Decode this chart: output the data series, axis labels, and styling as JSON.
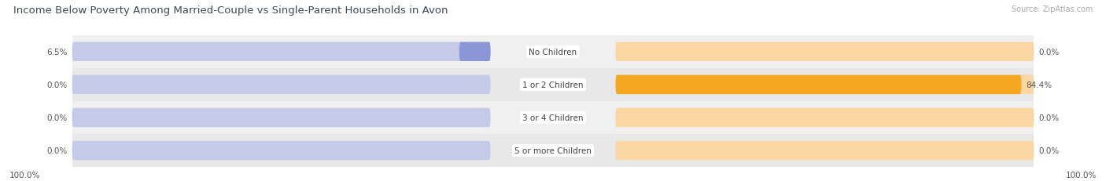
{
  "title": "Income Below Poverty Among Married-Couple vs Single-Parent Households in Avon",
  "source": "Source: ZipAtlas.com",
  "categories": [
    "No Children",
    "1 or 2 Children",
    "3 or 4 Children",
    "5 or more Children"
  ],
  "married_values": [
    6.5,
    0.0,
    0.0,
    0.0
  ],
  "single_values": [
    0.0,
    84.4,
    0.0,
    0.0
  ],
  "married_color": "#8a96d5",
  "single_color": "#f5a623",
  "married_color_light": "#c5cae9",
  "single_color_light": "#fad7a0",
  "row_bg_even": "#f0f0f0",
  "row_bg_odd": "#e8e8e8",
  "max_value": 100.0,
  "left_axis_label": "100.0%",
  "right_axis_label": "100.0%",
  "title_fontsize": 9.5,
  "source_fontsize": 7,
  "label_fontsize": 7.5,
  "category_fontsize": 7.5,
  "figsize": [
    14.06,
    2.32
  ],
  "dpi": 100
}
